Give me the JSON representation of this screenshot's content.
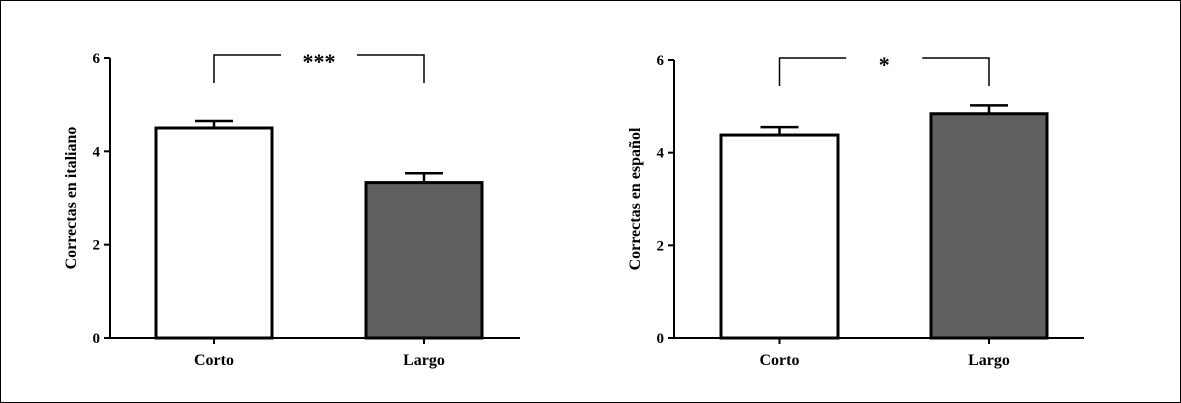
{
  "chart_data": [
    {
      "type": "bar",
      "ylabel": "Correctas en italiano",
      "xlabel": "",
      "categories": [
        "Corto",
        "Largo"
      ],
      "values": [
        4.5,
        3.33
      ],
      "errors": [
        0.15,
        0.2
      ],
      "ylim": [
        0,
        6
      ],
      "yticks": [
        "0",
        "2",
        "4",
        "6"
      ],
      "bar_colors": [
        "#ffffff",
        "#606060"
      ],
      "significance": "***",
      "grid": false
    },
    {
      "type": "bar",
      "ylabel": "Correctas en español",
      "xlabel": "",
      "categories": [
        "Corto",
        "Largo"
      ],
      "values": [
        4.38,
        4.84
      ],
      "errors": [
        0.17,
        0.18
      ],
      "ylim": [
        0,
        6
      ],
      "yticks": [
        "0",
        "2",
        "4",
        "6"
      ],
      "bar_colors": [
        "#ffffff",
        "#606060"
      ],
      "significance": "*",
      "grid": false
    }
  ]
}
